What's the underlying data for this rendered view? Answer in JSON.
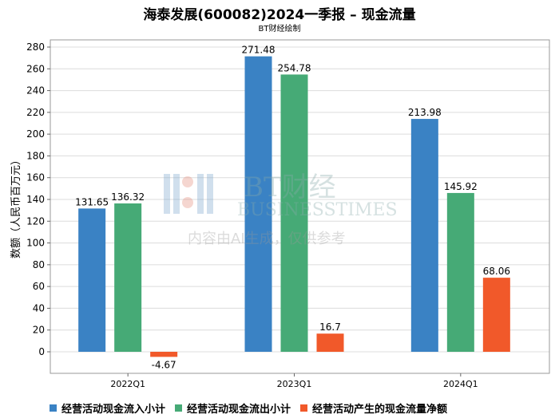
{
  "title": "海泰发展(600082)2024一季报 – 现金流量",
  "subtitle": "BT财经绘制",
  "watermark": {
    "brand_cn": "BT财经",
    "brand_en": "BUSINESSTIMES",
    "notice": "内容由AI生成，仅供参考"
  },
  "chart_data": {
    "type": "bar",
    "categories": [
      "2022Q1",
      "2023Q1",
      "2024Q1"
    ],
    "series": [
      {
        "name": "经营活动现金流入小计",
        "color": "#3a82c4",
        "values": [
          131.65,
          271.48,
          213.98
        ]
      },
      {
        "name": "经营活动现金流出小计",
        "color": "#46aa76",
        "values": [
          136.32,
          254.78,
          145.92
        ]
      },
      {
        "name": "经营活动产生的现金流量净额",
        "color": "#f1592a",
        "values": [
          -4.67,
          16.7,
          68.06
        ]
      }
    ],
    "ylabel": "数额（人民币百万元）",
    "ylim": [
      -20,
      280
    ],
    "yticks": [
      0,
      20,
      40,
      60,
      80,
      100,
      120,
      140,
      160,
      180,
      200,
      220,
      240,
      260,
      280
    ],
    "grid": true,
    "legend": "bottom"
  }
}
